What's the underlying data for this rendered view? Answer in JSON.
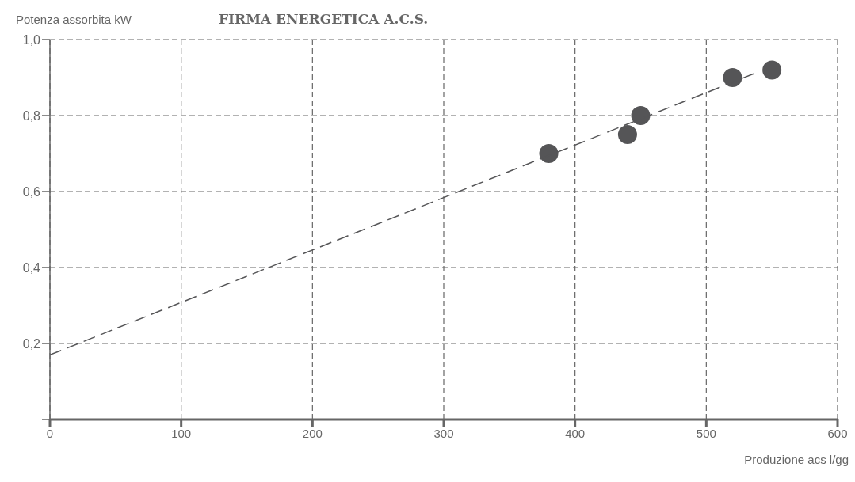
{
  "chart_data": {
    "type": "scatter",
    "title": "FIRMA ENERGETICA A.C.S.",
    "xlabel": "Produzione acs l/gg",
    "ylabel": "Potenza assorbita kW",
    "series": [
      {
        "color": "#555557",
        "marker": "circle",
        "x": [
          380,
          440,
          450,
          520,
          550
        ],
        "values": [
          0.7,
          0.75,
          0.8,
          0.9,
          0.92
        ]
      },
      {
        "type": "line",
        "color": "#555557",
        "marker": "none",
        "line_style": "dashed",
        "x": [
          0,
          536
        ],
        "values": [
          0.17,
          0.91
        ]
      }
    ],
    "xlim": [
      0,
      600
    ],
    "xticks": [
      0,
      100,
      200,
      300,
      400,
      500,
      600
    ],
    "ylim": [
      0,
      1
    ],
    "yticks": [
      {
        "value": 0,
        "label": null
      },
      {
        "value": 0.2,
        "label": "0,2"
      },
      {
        "value": 0.4,
        "label": "0,4"
      },
      {
        "value": 0.6,
        "label": "0,6"
      },
      {
        "value": 0.8,
        "label": "0,8"
      },
      {
        "value": 1,
        "label": "1,0"
      }
    ],
    "grid": true
  }
}
